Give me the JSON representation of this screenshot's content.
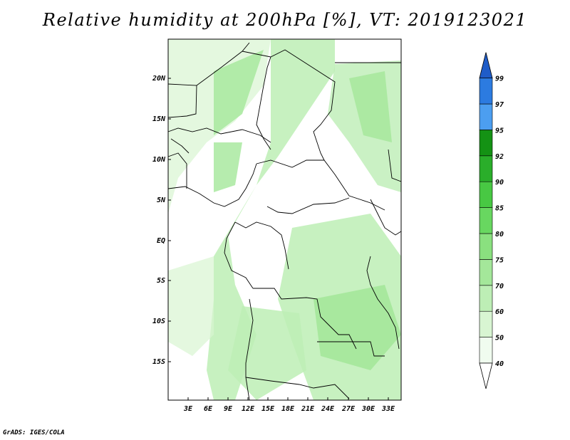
{
  "title": "Relative humidity at 200hPa [%], VT: 2019123021",
  "credit": "GrADS: IGES/COLA",
  "map": {
    "lat_labels": [
      "20N",
      "15N",
      "10N",
      "5N",
      "EQ",
      "5S",
      "10S",
      "15S"
    ],
    "lon_labels": [
      "3E",
      "6E",
      "9E",
      "12E",
      "15E",
      "18E",
      "21E",
      "24E",
      "27E",
      "30E",
      "33E"
    ],
    "units": "%"
  },
  "colorbar": {
    "labels": [
      "40",
      "50",
      "60",
      "70",
      "75",
      "80",
      "85",
      "90",
      "92",
      "95",
      "97",
      "99"
    ],
    "colors": [
      "#ffffff",
      "#f0fcef",
      "#d8f5d2",
      "#bdeeb5",
      "#a4e79a",
      "#8ae07f",
      "#68d760",
      "#48c843",
      "#2aae2a",
      "#149214",
      "#4c9ef0",
      "#2c7be0",
      "#1f5cc8"
    ]
  }
}
